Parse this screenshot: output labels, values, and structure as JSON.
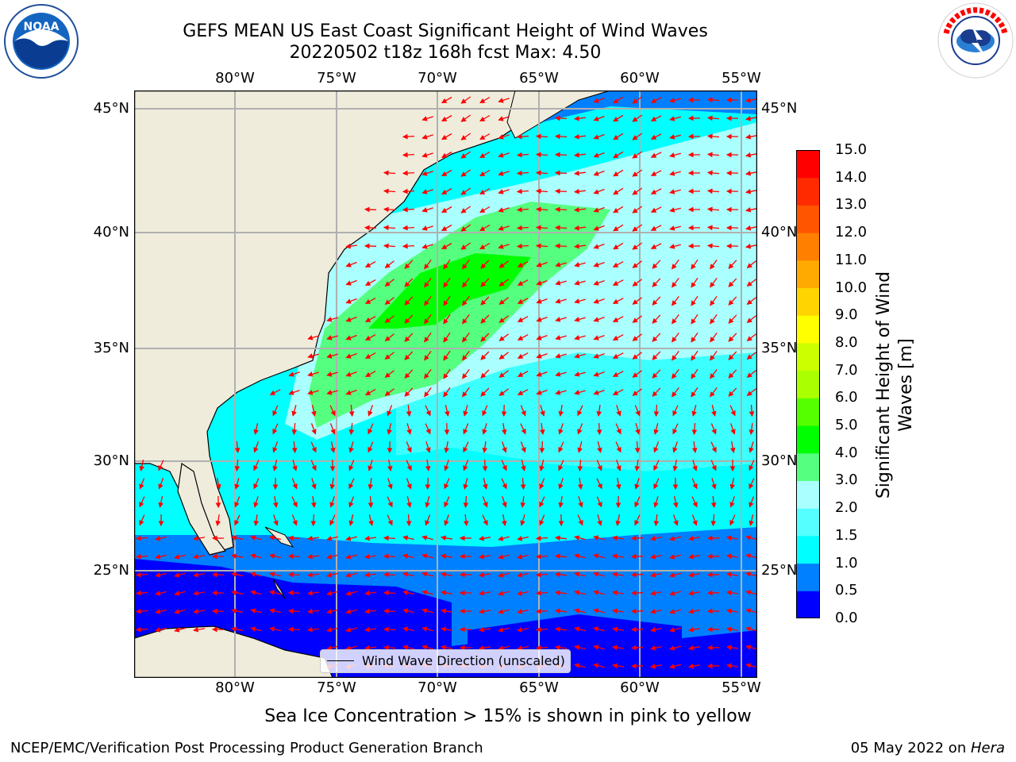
{
  "header": {
    "title_line1": "GEFS MEAN US East Coast Significant Height of Wind Waves",
    "title_line2": "20220502 t18z 168h fcst   Max: 4.50"
  },
  "logos": {
    "left": {
      "icon": "noaa-logo",
      "text": "NOAA"
    },
    "right": {
      "icon": "nws-logo",
      "text": "NATIONAL WEATHER SERVICE"
    }
  },
  "map": {
    "extent": {
      "lon_min": -85,
      "lon_max": -54.2,
      "lat_min": 20.5,
      "lat_max": 46
    },
    "lon_ticks": [
      "80°W",
      "75°W",
      "70°W",
      "65°W",
      "60°W",
      "55°W"
    ],
    "lat_ticks": [
      "45°N",
      "40°N",
      "35°N",
      "30°N",
      "25°N"
    ],
    "colors": {
      "land": "#efecdc",
      "coast": "#000000",
      "grid": "#b0b0b0",
      "arrow": "#ff0000"
    },
    "legend": {
      "label": "Wind Wave Direction (unscaled)"
    }
  },
  "colorbar": {
    "title": "Significant Height of Wind Waves [m]",
    "ticks": [
      "15.0",
      "14.0",
      "13.0",
      "12.0",
      "11.0",
      "10.0",
      "9.0",
      "8.0",
      "7.0",
      "6.0",
      "5.0",
      "4.0",
      "3.0",
      "2.0",
      "1.5",
      "1.0",
      "0.5",
      "0.0"
    ],
    "colors": [
      "#0000ff",
      "#0080ff",
      "#00ffff",
      "#55ffff",
      "#aaffff",
      "#55ff7f",
      "#00ff00",
      "#55ff00",
      "#aaff00",
      "#ccff00",
      "#ffff00",
      "#ffd400",
      "#ffaa00",
      "#ff7f00",
      "#ff5500",
      "#ff2a00",
      "#ff0000"
    ]
  },
  "footer": {
    "note": "Sea Ice Concentration > 15% is shown in pink to yellow",
    "left": "NCEP/EMC/Verification Post Processing Product Generation Branch",
    "right_prefix": "05 May 2022 on ",
    "right_host": "Hera"
  }
}
